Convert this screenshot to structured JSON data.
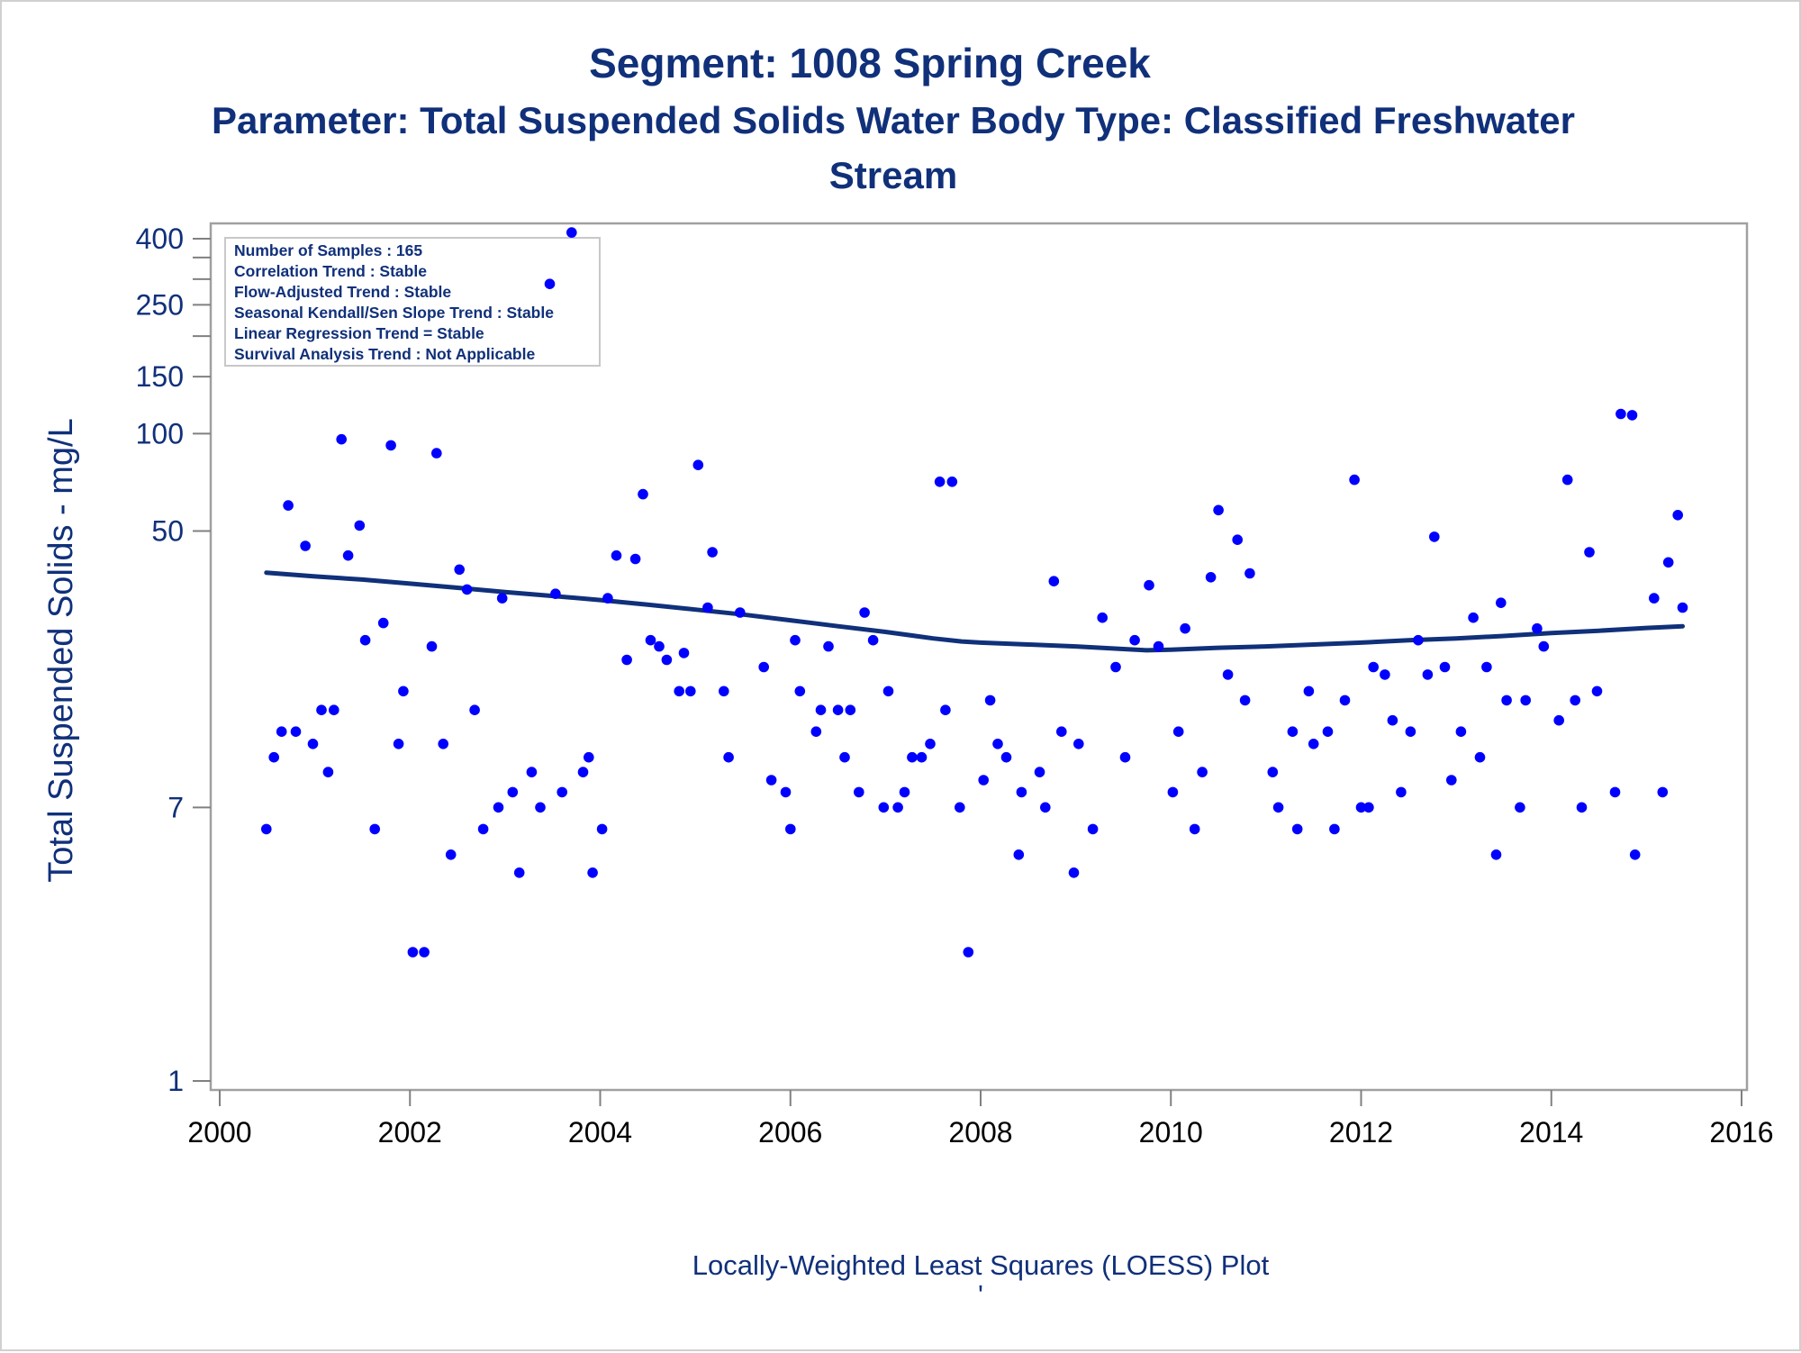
{
  "chart_data": {
    "type": "scatter",
    "title": "Segment: 1008  Spring Creek",
    "subtitle_lines": [
      "Parameter: Total Suspended Solids   Water Body Type: Classified Freshwater",
      "Stream"
    ],
    "xlabel": "",
    "ylabel": "Total Suspended Solids - mg/L",
    "footnote": "Locally-Weighted Least Squares (LOESS) Plot",
    "footnote_mark": "'",
    "y_scale": "log",
    "xlim": [
      2000,
      2016
    ],
    "ylim": [
      1,
      450
    ],
    "x_ticks": [
      2000,
      2002,
      2004,
      2006,
      2008,
      2010,
      2012,
      2014,
      2016
    ],
    "y_ticks": [
      1,
      7,
      50,
      100,
      150,
      250,
      400
    ],
    "y_minor_ticks": [
      200,
      300,
      350
    ],
    "grid": false,
    "legend": "none",
    "stats_box": {
      "placement": "top-left",
      "lines": [
        "Number of Samples : 165",
        "Correlation Trend : Stable",
        "Flow-Adjusted Trend : Stable",
        "Seasonal Kendall/Sen Slope Trend : Stable",
        "Linear Regression Trend = Stable",
        "Survival Analysis Trend : Not Applicable"
      ]
    },
    "colors": {
      "points": "#0000ff",
      "loess": "#10307a",
      "text": "#10307a",
      "frame": "#a0a0a0"
    },
    "points": [
      [
        2000.49,
        6.0
      ],
      [
        2000.57,
        10.0
      ],
      [
        2000.65,
        12.0
      ],
      [
        2000.72,
        60.0
      ],
      [
        2000.8,
        12.0
      ],
      [
        2000.9,
        45.0
      ],
      [
        2000.98,
        11.0
      ],
      [
        2001.07,
        14.0
      ],
      [
        2001.14,
        9.0
      ],
      [
        2001.2,
        14.0
      ],
      [
        2001.28,
        96.0
      ],
      [
        2001.35,
        42.0
      ],
      [
        2001.47,
        52.0
      ],
      [
        2001.53,
        23.0
      ],
      [
        2001.63,
        6.0
      ],
      [
        2001.72,
        26.0
      ],
      [
        2001.8,
        92.0
      ],
      [
        2001.88,
        11.0
      ],
      [
        2001.93,
        16.0
      ],
      [
        2002.03,
        2.5
      ],
      [
        2002.15,
        2.5
      ],
      [
        2002.23,
        22.0
      ],
      [
        2002.28,
        87.0
      ],
      [
        2002.35,
        11.0
      ],
      [
        2002.43,
        5.0
      ],
      [
        2002.52,
        38.0
      ],
      [
        2002.6,
        33.0
      ],
      [
        2002.68,
        14.0
      ],
      [
        2002.77,
        6.0
      ],
      [
        2002.93,
        7.0
      ],
      [
        2002.97,
        31.0
      ],
      [
        2003.08,
        7.8
      ],
      [
        2003.15,
        4.4
      ],
      [
        2003.28,
        9.0
      ],
      [
        2003.37,
        7.0
      ],
      [
        2003.47,
        290.0
      ],
      [
        2003.53,
        32.0
      ],
      [
        2003.6,
        7.8
      ],
      [
        2003.7,
        418.0
      ],
      [
        2003.82,
        9.0
      ],
      [
        2003.88,
        10.0
      ],
      [
        2003.92,
        4.4
      ],
      [
        2004.02,
        6.0
      ],
      [
        2004.08,
        31.0
      ],
      [
        2004.17,
        42.0
      ],
      [
        2004.28,
        20.0
      ],
      [
        2004.37,
        41.0
      ],
      [
        2004.45,
        65.0
      ],
      [
        2004.53,
        23.0
      ],
      [
        2004.62,
        22.0
      ],
      [
        2004.7,
        20.0
      ],
      [
        2004.83,
        16.0
      ],
      [
        2004.88,
        21.0
      ],
      [
        2004.95,
        16.0
      ],
      [
        2005.03,
        80.0
      ],
      [
        2005.13,
        29.0
      ],
      [
        2005.18,
        43.0
      ],
      [
        2005.3,
        16.0
      ],
      [
        2005.35,
        10.0
      ],
      [
        2005.47,
        28.0
      ],
      [
        2005.72,
        19.0
      ],
      [
        2005.8,
        8.5
      ],
      [
        2005.95,
        7.8
      ],
      [
        2006.0,
        6.0
      ],
      [
        2006.05,
        23.0
      ],
      [
        2006.1,
        16.0
      ],
      [
        2006.27,
        12.0
      ],
      [
        2006.32,
        14.0
      ],
      [
        2006.4,
        22.0
      ],
      [
        2006.5,
        14.0
      ],
      [
        2006.57,
        10.0
      ],
      [
        2006.63,
        14.0
      ],
      [
        2006.72,
        7.8
      ],
      [
        2006.78,
        28.0
      ],
      [
        2006.87,
        23.0
      ],
      [
        2006.98,
        7.0
      ],
      [
        2007.03,
        16.0
      ],
      [
        2007.13,
        7.0
      ],
      [
        2007.2,
        7.8
      ],
      [
        2007.28,
        10.0
      ],
      [
        2007.38,
        10.0
      ],
      [
        2007.47,
        11.0
      ],
      [
        2007.57,
        71.0
      ],
      [
        2007.63,
        14.0
      ],
      [
        2007.7,
        71.0
      ],
      [
        2007.78,
        7.0
      ],
      [
        2007.87,
        2.5
      ],
      [
        2008.03,
        8.5
      ],
      [
        2008.1,
        15.0
      ],
      [
        2008.18,
        11.0
      ],
      [
        2008.27,
        10.0
      ],
      [
        2008.4,
        5.0
      ],
      [
        2008.43,
        7.8
      ],
      [
        2008.62,
        9.0
      ],
      [
        2008.68,
        7.0
      ],
      [
        2008.77,
        35.0
      ],
      [
        2008.85,
        12.0
      ],
      [
        2008.98,
        4.4
      ],
      [
        2009.03,
        11.0
      ],
      [
        2009.18,
        6.0
      ],
      [
        2009.28,
        27.0
      ],
      [
        2009.42,
        19.0
      ],
      [
        2009.52,
        10.0
      ],
      [
        2009.62,
        23.0
      ],
      [
        2009.77,
        34.0
      ],
      [
        2009.87,
        22.0
      ],
      [
        2010.02,
        7.8
      ],
      [
        2010.08,
        12.0
      ],
      [
        2010.15,
        25.0
      ],
      [
        2010.25,
        6.0
      ],
      [
        2010.33,
        9.0
      ],
      [
        2010.42,
        36.0
      ],
      [
        2010.5,
        58.0
      ],
      [
        2010.6,
        18.0
      ],
      [
        2010.7,
        47.0
      ],
      [
        2010.78,
        15.0
      ],
      [
        2010.83,
        37.0
      ],
      [
        2011.07,
        9.0
      ],
      [
        2011.13,
        7.0
      ],
      [
        2011.28,
        12.0
      ],
      [
        2011.33,
        6.0
      ],
      [
        2011.45,
        16.0
      ],
      [
        2011.5,
        11.0
      ],
      [
        2011.65,
        12.0
      ],
      [
        2011.72,
        6.0
      ],
      [
        2011.83,
        15.0
      ],
      [
        2011.93,
        72.0
      ],
      [
        2012.0,
        7.0
      ],
      [
        2012.08,
        7.0
      ],
      [
        2012.13,
        19.0
      ],
      [
        2012.25,
        18.0
      ],
      [
        2012.33,
        13.0
      ],
      [
        2012.42,
        7.8
      ],
      [
        2012.52,
        12.0
      ],
      [
        2012.6,
        23.0
      ],
      [
        2012.7,
        18.0
      ],
      [
        2012.77,
        48.0
      ],
      [
        2012.88,
        19.0
      ],
      [
        2012.95,
        8.5
      ],
      [
        2013.05,
        12.0
      ],
      [
        2013.18,
        27.0
      ],
      [
        2013.25,
        10.0
      ],
      [
        2013.32,
        19.0
      ],
      [
        2013.42,
        5.0
      ],
      [
        2013.47,
        30.0
      ],
      [
        2013.53,
        15.0
      ],
      [
        2013.67,
        7.0
      ],
      [
        2013.73,
        15.0
      ],
      [
        2013.85,
        25.0
      ],
      [
        2013.92,
        22.0
      ],
      [
        2014.08,
        13.0
      ],
      [
        2014.17,
        72.0
      ],
      [
        2014.25,
        15.0
      ],
      [
        2014.32,
        7.0
      ],
      [
        2014.4,
        43.0
      ],
      [
        2014.48,
        16.0
      ],
      [
        2014.67,
        7.8
      ],
      [
        2014.73,
        115.0
      ],
      [
        2014.85,
        114.0
      ],
      [
        2014.88,
        5.0
      ],
      [
        2015.08,
        31.0
      ],
      [
        2015.17,
        7.8
      ],
      [
        2015.23,
        40.0
      ],
      [
        2015.33,
        56.0
      ],
      [
        2015.38,
        29.0
      ]
    ],
    "loess_curve": [
      [
        2000.49,
        37.2
      ],
      [
        2001.0,
        36.2
      ],
      [
        2001.5,
        35.4
      ],
      [
        2002.0,
        34.4
      ],
      [
        2002.5,
        33.4
      ],
      [
        2003.0,
        32.4
      ],
      [
        2003.5,
        31.5
      ],
      [
        2004.0,
        30.6
      ],
      [
        2004.5,
        29.6
      ],
      [
        2005.0,
        28.6
      ],
      [
        2005.5,
        27.6
      ],
      [
        2006.0,
        26.5
      ],
      [
        2006.5,
        25.4
      ],
      [
        2007.0,
        24.4
      ],
      [
        2007.5,
        23.3
      ],
      [
        2007.8,
        22.8
      ],
      [
        2008.0,
        22.6
      ],
      [
        2008.5,
        22.3
      ],
      [
        2009.0,
        22.0
      ],
      [
        2009.5,
        21.6
      ],
      [
        2009.75,
        21.4
      ],
      [
        2010.0,
        21.5
      ],
      [
        2010.5,
        21.8
      ],
      [
        2011.0,
        22.0
      ],
      [
        2011.5,
        22.3
      ],
      [
        2012.0,
        22.6
      ],
      [
        2012.5,
        23.0
      ],
      [
        2013.0,
        23.3
      ],
      [
        2013.5,
        23.7
      ],
      [
        2014.0,
        24.2
      ],
      [
        2014.5,
        24.6
      ],
      [
        2015.0,
        25.1
      ],
      [
        2015.38,
        25.4
      ]
    ]
  }
}
